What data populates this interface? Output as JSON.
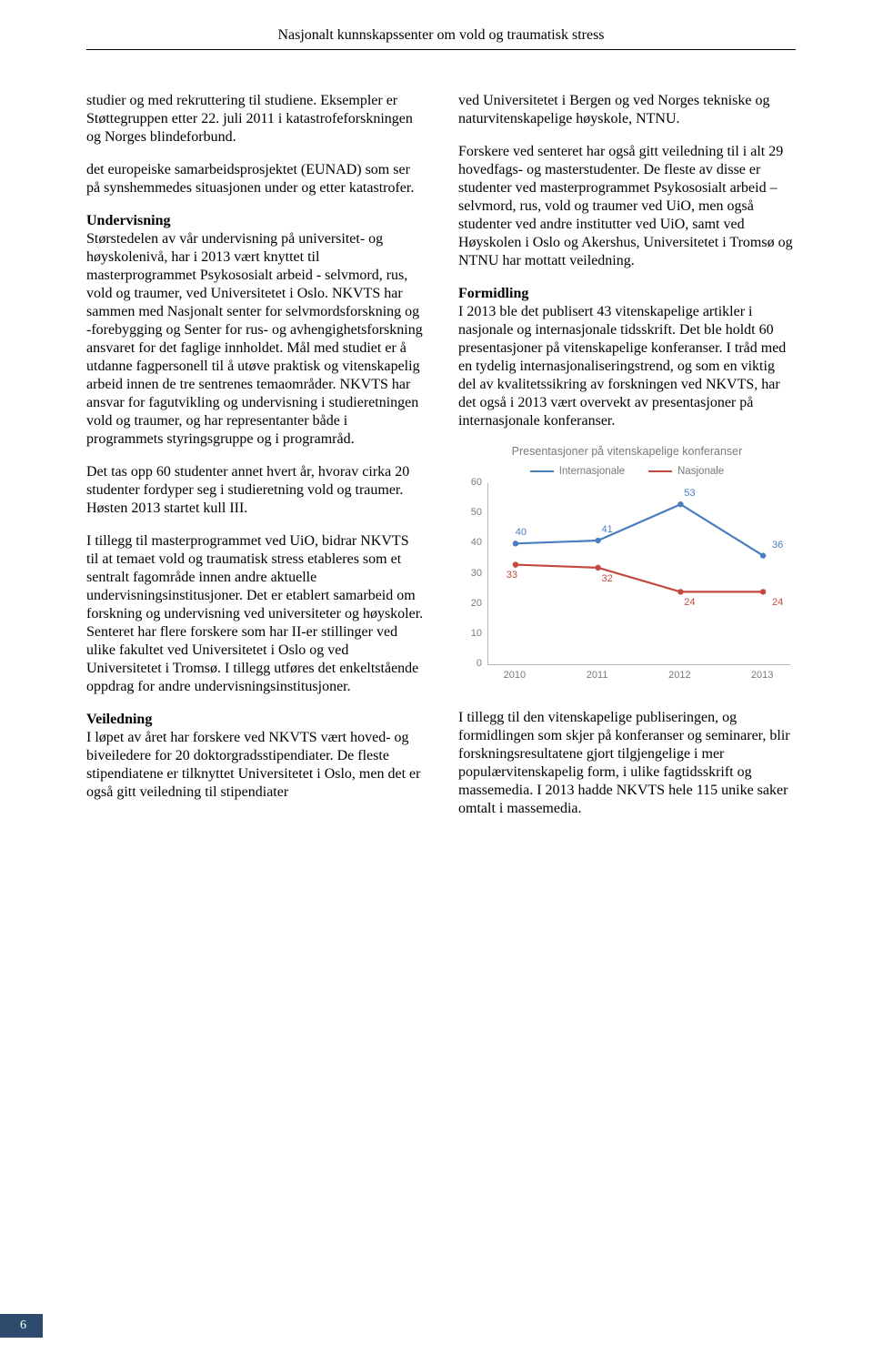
{
  "header": "Nasjonalt kunnskapssenter om vold og traumatisk stress",
  "page_number": "6",
  "left": {
    "p1": "studier og med rekruttering til studiene. Eksempler er Støttegruppen etter 22. juli 2011 i katastrofeforskningen og Norges blindeforbund.",
    "p2": "det europeiske samarbeidsprosjektet (EUNAD) som ser på synshemmedes situasjonen under og etter katastrofer.",
    "h1": "Undervisning",
    "p3": "Størstedelen av vår undervisning på universitet- og høyskolenivå, har i 2013 vært knyttet til masterprogrammet Psykososialt arbeid - selvmord, rus, vold og traumer, ved Universitetet i Oslo. NKVTS har sammen med Nasjonalt senter for selvmordsforskning og -forebygging og Senter for rus- og avhengighetsforskning ansvaret for det faglige innholdet. Mål med studiet er å utdanne fagpersonell til å utøve praktisk og vitenskapelig arbeid innen de tre sentrenes temaområder. NKVTS har ansvar for fagutvikling og undervisning i studieretningen vold og traumer, og har representanter både i programmets styringsgruppe og i programråd.",
    "p4": "Det tas opp 60 studenter annet hvert år, hvorav cirka 20 studenter fordyper seg i studieretning vold og traumer. Høsten 2013 startet kull III.",
    "p5": "I tillegg til masterprogrammet ved UiO, bidrar NKVTS til at temaet vold og traumatisk stress etableres som et sentralt fagområde innen andre aktuelle undervisningsinstitusjoner. Det er etablert samarbeid om forskning og undervisning ved universiteter og høyskoler. Senteret har flere forskere som har II-er stillinger ved ulike fakultet ved Universitetet i Oslo og ved Universitetet i Tromsø. I tillegg utføres det enkeltstående oppdrag for andre undervisningsinstitusjoner.",
    "h2": "Veiledning",
    "p6": "I løpet av året har forskere ved NKVTS vært hoved- og biveiledere for 20 doktorgradsstipendiater. De fleste stipendiatene er tilknyttet Universitetet i Oslo, men det er også gitt veiledning til stipendiater"
  },
  "right": {
    "p1": "ved Universitetet i Bergen og ved Norges tekniske og naturvitenskapelige høyskole, NTNU.",
    "p2": "Forskere ved senteret har også gitt veiledning til i alt 29 hovedfags- og masterstudenter. De fleste av disse er studenter ved masterprogrammet Psykososialt arbeid – selvmord, rus, vold og traumer ved UiO, men også studenter ved andre institutter ved UiO, samt ved Høyskolen i Oslo og Akershus, Universitetet i Tromsø og NTNU har mottatt veiledning.",
    "h1": "Formidling",
    "p3": "I 2013 ble det publisert 43 vitenskapelige artikler i nasjonale og internasjonale tidsskrift. Det ble holdt 60 presentasjoner på vitenskapelige konferanser. I tråd med en tydelig internasjonaliseringstrend, og som en viktig del av kvalitetssikring av forskningen ved NKVTS, har det også i 2013 vært overvekt av presentasjoner på internasjonale konferanser.",
    "p4": "I tillegg til den vitenskapelige publiseringen, og formidlingen som skjer på konferanser og seminarer, blir forskningsresultatene gjort tilgjengelige i mer populærvitenskapelig form, i ulike fagtidsskrift og massemedia. I 2013 hadde NKVTS hele 115 unike saker omtalt i massemedia."
  },
  "chart": {
    "type": "line",
    "title": "Presentasjoner på vitenskapelige konferanser",
    "legend": [
      {
        "label": "Internasjonale",
        "color": "#4a7ec0"
      },
      {
        "label": "Nasjonale",
        "color": "#c24a3f"
      }
    ],
    "categories": [
      "2010",
      "2011",
      "2012",
      "2013"
    ],
    "series": [
      {
        "name": "Internasjonale",
        "color": "#4a7ec0",
        "values": [
          40,
          41,
          53,
          36
        ],
        "label_color": "#4a7ec0"
      },
      {
        "name": "Nasjonale",
        "color": "#c24a3f",
        "values": [
          33,
          32,
          24,
          24
        ],
        "label_color": "#c24a3f"
      }
    ],
    "ylim": [
      0,
      60
    ],
    "ytick_step": 10,
    "line_width": 2.2,
    "marker_radius": 3.2,
    "background_color": "#ffffff",
    "axis_color": "#b8b8b8",
    "text_color": "#7a7a7a",
    "title_fontsize": 12.5,
    "label_fontsize": 11
  }
}
